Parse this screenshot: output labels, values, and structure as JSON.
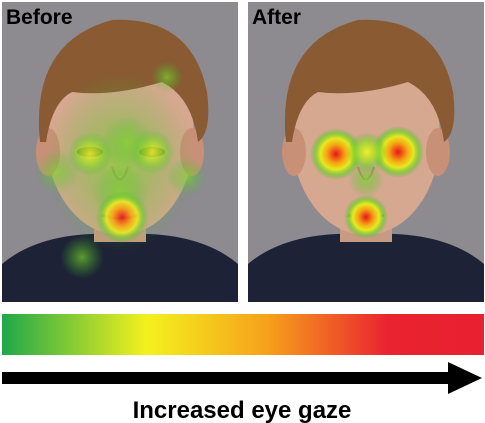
{
  "panels": [
    {
      "label": "Before"
    },
    {
      "label": "After"
    }
  ],
  "caption": "Increased eye gaze"
}
